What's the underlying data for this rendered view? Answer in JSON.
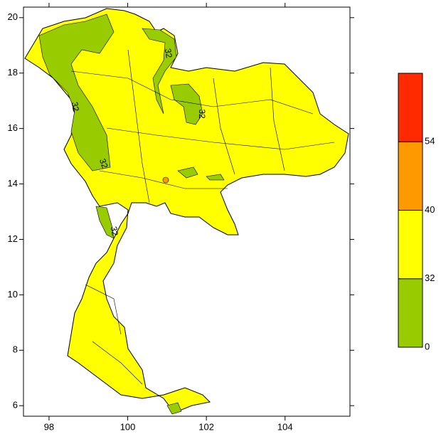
{
  "map": {
    "xlim": [
      97.35,
      105.65
    ],
    "ylim": [
      5.62,
      20.38
    ],
    "xticks": [
      98,
      100,
      102,
      104
    ],
    "yticks": [
      6,
      8,
      10,
      12,
      14,
      16,
      18,
      20
    ],
    "contour_labels": [
      "32",
      "32",
      "32",
      "32",
      "32"
    ]
  },
  "colorbar": {
    "levels": [
      0,
      32,
      40,
      54
    ],
    "colors": [
      "#99cc00",
      "#ffff00",
      "#ff9900",
      "#ff2a00"
    ]
  }
}
